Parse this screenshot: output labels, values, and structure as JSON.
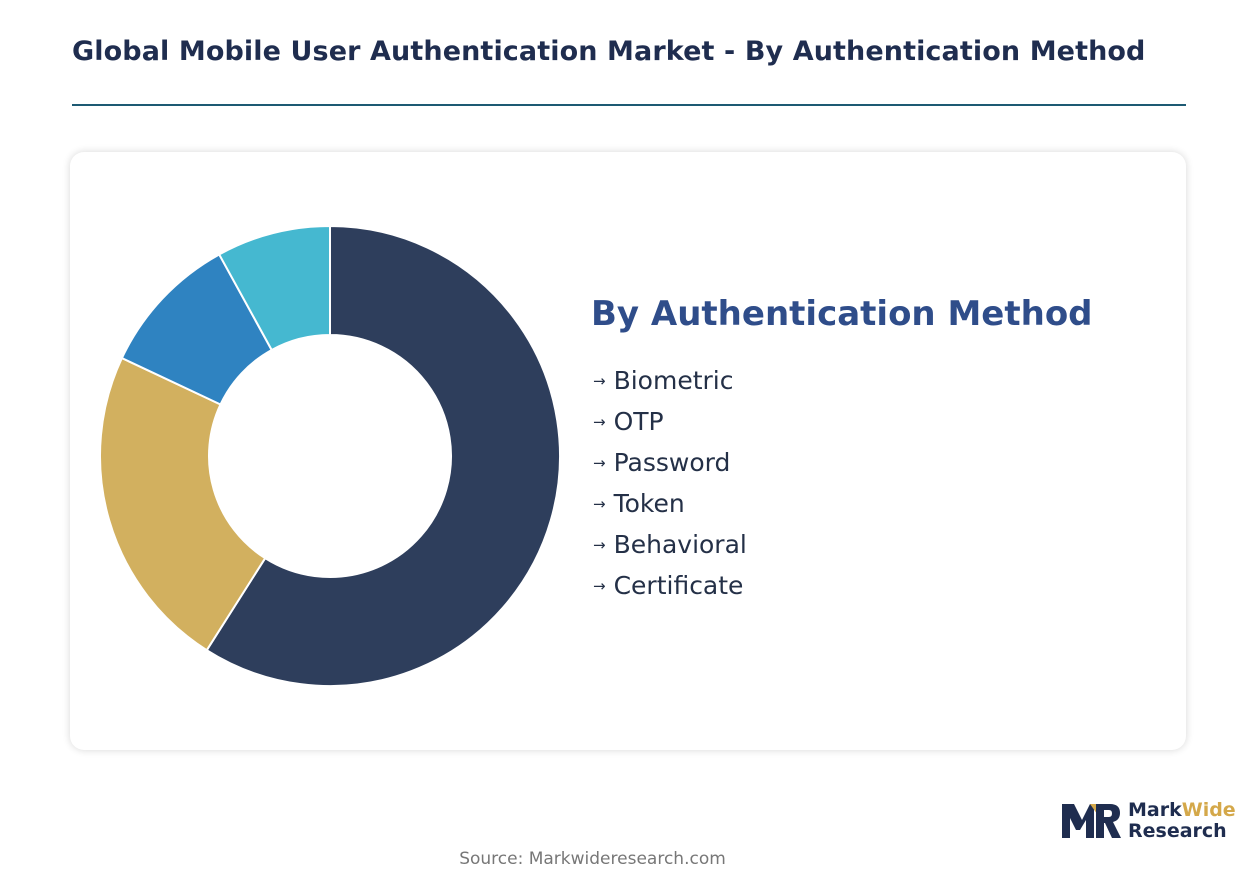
{
  "title": "Global Mobile User Authentication Market - By Authentication Method",
  "legend": {
    "title": "By Authentication Method",
    "items": [
      "Biometric",
      "OTP",
      "Password",
      "Token",
      "Behavioral",
      "Certificate"
    ],
    "arrow": "→"
  },
  "source": "Source: Markwideresearch.com",
  "logo": {
    "line1a": "Mark",
    "line1b": "Wide",
    "line2": "Research"
  },
  "colors": {
    "title": "#1f2d4f",
    "rule": "#1d5a73",
    "legend_title": "#2f4d8a"
  },
  "chart_data": {
    "type": "pie",
    "style": "donut",
    "categories": [
      "Biometric",
      "Password",
      "OTP",
      "Token"
    ],
    "values": [
      59,
      23,
      10,
      8
    ],
    "unit": "%",
    "colors": [
      "#2e3e5c",
      "#d2b05f",
      "#2f83c1",
      "#45b8d0"
    ],
    "start_angle_deg": 0,
    "direction": "clockwise",
    "legend_position": "right"
  }
}
